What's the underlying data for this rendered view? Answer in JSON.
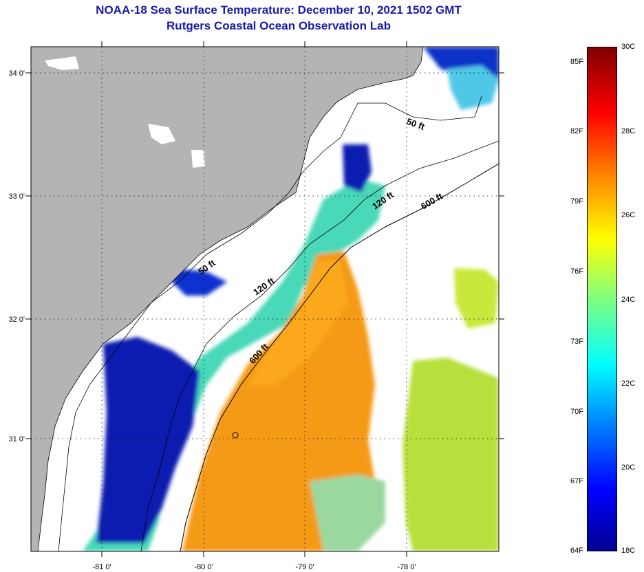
{
  "header": {
    "title_line1": "NOAA-18 Sea Surface Temperature:  December 10, 2021 1502 GMT",
    "title_line2": "Rutgers Coastal Ocean Observation Lab"
  },
  "map": {
    "lon_ticks": [
      "-81 0'",
      "-80 0'",
      "-79 0'",
      "-78 0'"
    ],
    "lat_ticks": [
      "34 0'",
      "33 0'",
      "32 0'",
      "31 0'"
    ],
    "isobaths": [
      "50 ft",
      "50 ft",
      "120 ft",
      "120 ft",
      "600 ft",
      "600 ft"
    ],
    "colors": {
      "land": "#b4b4b4",
      "no_data": "#ffffff",
      "warm": "#f59a16",
      "cold": "#0c1cb0"
    }
  },
  "colorbar": {
    "fahrenheit": [
      "85F",
      "82F",
      "79F",
      "76F",
      "73F",
      "70F",
      "67F",
      "64F"
    ],
    "celsius": [
      "30C",
      "28C",
      "26C",
      "24C",
      "22C",
      "20C",
      "18C"
    ],
    "range_c": [
      18,
      30
    ]
  }
}
